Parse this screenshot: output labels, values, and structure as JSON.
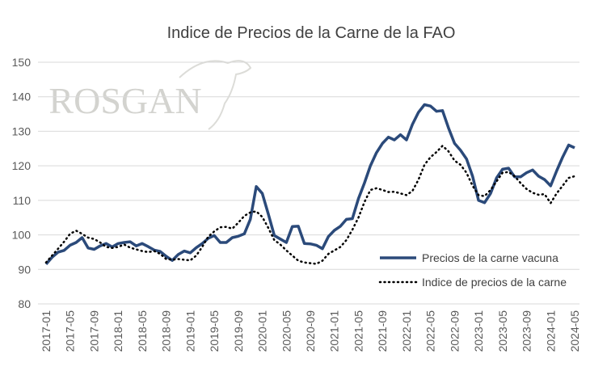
{
  "chart_data": {
    "type": "line",
    "title": "Indice de Precios de la Carne de la FAO",
    "watermark": "ROSGAN",
    "categories": [
      "2017-01",
      null,
      null,
      null,
      "2017-05",
      null,
      null,
      null,
      "2017-09",
      null,
      null,
      null,
      "2018-01",
      null,
      null,
      null,
      "2018-05",
      null,
      null,
      null,
      "2018-09",
      null,
      null,
      null,
      "2019-01",
      null,
      null,
      null,
      "2019-05",
      null,
      null,
      null,
      "2019-09",
      null,
      null,
      null,
      "2020-01",
      null,
      null,
      null,
      "2020-05",
      null,
      null,
      null,
      "2020-09",
      null,
      null,
      null,
      "2021-01",
      null,
      null,
      null,
      "2021-05",
      null,
      null,
      null,
      "2021-09",
      null,
      null,
      null,
      "2022-01",
      null,
      null,
      null,
      "2022-05",
      null,
      null,
      null,
      "2022-09",
      null,
      null,
      null,
      "2023-01",
      null,
      null,
      null,
      "2023-05",
      null,
      null,
      null,
      "2023-09",
      null,
      null,
      null,
      "2024-01",
      null,
      null,
      null,
      "2024-05"
    ],
    "series": [
      {
        "name": "Precios de la carne vacuna",
        "color": "#2b4a7a",
        "style": "solid",
        "values": [
          91.5,
          93.5,
          95,
          95.5,
          97,
          97.8,
          99.2,
          96.2,
          95.8,
          96.8,
          97.5,
          96.5,
          97.5,
          97.8,
          98,
          96.8,
          97.5,
          96.6,
          95.6,
          95.2,
          93.8,
          92.6,
          94.3,
          95.3,
          94.8,
          96.3,
          97.5,
          99,
          99.8,
          97.8,
          97.8,
          99.2,
          99.6,
          100.3,
          104.5,
          114,
          112,
          106,
          99.8,
          98.8,
          97.8,
          102.4,
          102.5,
          97.5,
          97.4,
          97,
          96,
          99.5,
          101.3,
          102.5,
          104.5,
          104.7,
          110.5,
          115,
          120,
          123.8,
          126.5,
          128.3,
          127.5,
          129,
          127.5,
          132,
          135.5,
          137.7,
          137.3,
          135.8,
          136,
          131,
          126.5,
          124.5,
          122,
          117,
          110,
          109.3,
          112,
          116.5,
          119,
          119.3,
          116.8,
          116.8,
          118,
          118.8,
          117,
          116,
          114.2,
          118.5,
          122.5,
          126,
          125.2
        ]
      },
      {
        "name": "Indice de precios de la carne",
        "color": "#000000",
        "style": "dotted",
        "values": [
          92,
          94,
          96,
          98,
          100.3,
          101.2,
          100.3,
          99.2,
          98.8,
          97.8,
          96.5,
          96.2,
          96.5,
          97.2,
          96.3,
          95.8,
          95.3,
          95,
          95.3,
          94.5,
          93,
          92.8,
          93,
          92.8,
          92.6,
          94,
          96.5,
          99.5,
          101,
          102.2,
          102.3,
          101.8,
          103.5,
          105.5,
          106.5,
          106.8,
          105.2,
          102,
          98.5,
          97.2,
          95.5,
          94,
          92.5,
          92,
          91.8,
          91.6,
          92.5,
          94.5,
          95.5,
          96.5,
          98.5,
          101.5,
          105,
          109.5,
          113,
          113.5,
          113,
          112.4,
          112.5,
          112,
          111.5,
          112.7,
          116,
          120.3,
          122.5,
          124,
          125.8,
          124.2,
          121.5,
          120.3,
          118,
          114.2,
          111.5,
          111.2,
          113,
          115.5,
          118,
          118.2,
          117,
          115,
          113.3,
          112.2,
          111.6,
          111.8,
          109.2,
          112,
          114.2,
          116.5,
          117
        ]
      }
    ],
    "ylim": [
      80,
      150
    ],
    "yticks": [
      80,
      90,
      100,
      110,
      120,
      130,
      140,
      150
    ],
    "grid": true,
    "legend": "lower right"
  }
}
